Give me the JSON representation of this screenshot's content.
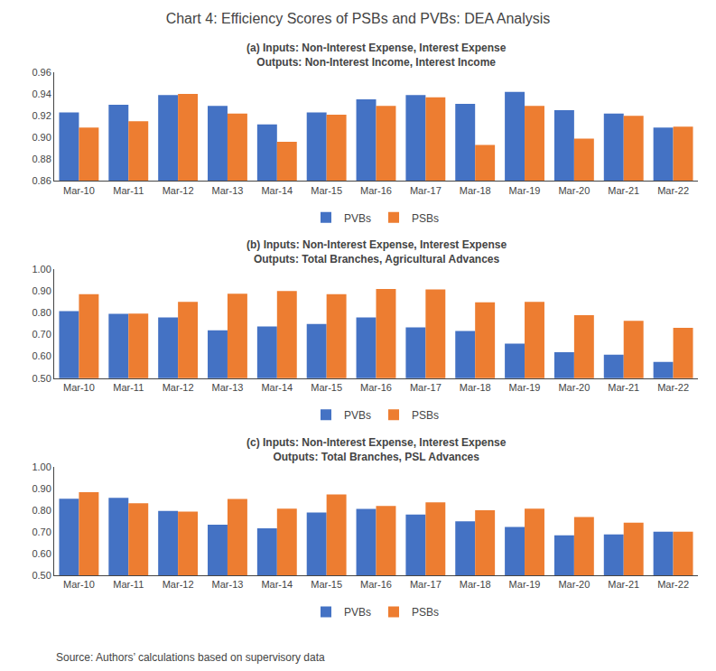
{
  "title": "Chart 4: Efficiency Scores of PSBs and PVBs: DEA Analysis",
  "annotations": [
    "Source: Authors’ calculations based on supervisory data"
  ],
  "chart_data": [
    {
      "type": "bar",
      "title": "(a) Inputs: Non-Interest Expense, Interest Expense",
      "subtitle": "Outputs: Non-Interest Income, Interest Income",
      "categories": [
        "Mar-10",
        "Mar-11",
        "Mar-12",
        "Mar-13",
        "Mar-14",
        "Mar-15",
        "Mar-16",
        "Mar-17",
        "Mar-18",
        "Mar-19",
        "Mar-20",
        "Mar-21",
        "Mar-22"
      ],
      "series": [
        {
          "name": "PVBs",
          "color": "#4472C4",
          "values": [
            0.923,
            0.93,
            0.939,
            0.929,
            0.912,
            0.923,
            0.935,
            0.939,
            0.931,
            0.942,
            0.925,
            0.922,
            0.909
          ]
        },
        {
          "name": "PSBs",
          "color": "#ED7D31",
          "values": [
            0.909,
            0.915,
            0.94,
            0.922,
            0.896,
            0.921,
            0.929,
            0.937,
            0.893,
            0.929,
            0.899,
            0.92,
            0.91
          ]
        }
      ],
      "ylim": [
        0.86,
        0.96
      ],
      "yticks": [
        0.86,
        0.88,
        {
          "value": 0.9,
          "label": "0.90"
        },
        0.92,
        0.94,
        0.96
      ],
      "grid": false,
      "legend": "bottom"
    },
    {
      "type": "bar",
      "title": "(b) Inputs: Non-Interest Expense, Interest Expense",
      "subtitle": "Outputs: Total Branches, Agricultural Advances",
      "categories": [
        "Mar-10",
        "Mar-11",
        "Mar-12",
        "Mar-13",
        "Mar-14",
        "Mar-15",
        "Mar-16",
        "Mar-17",
        "Mar-18",
        "Mar-19",
        "Mar-20",
        "Mar-21",
        "Mar-22"
      ],
      "series": [
        {
          "name": "PVBs",
          "color": "#4472C4",
          "values": [
            0.808,
            0.796,
            0.779,
            0.72,
            0.738,
            0.749,
            0.779,
            0.733,
            0.717,
            0.659,
            0.619,
            0.608,
            0.574
          ]
        },
        {
          "name": "PSBs",
          "color": "#ED7D31",
          "values": [
            0.886,
            0.797,
            0.851,
            0.888,
            0.901,
            0.886,
            0.91,
            0.908,
            0.849,
            0.851,
            0.789,
            0.764,
            0.731
          ]
        }
      ],
      "ylim": [
        0.5,
        1.0
      ],
      "yticks": [
        {
          "value": 0.5,
          "label": "0.50"
        },
        {
          "value": 0.6,
          "label": "0.60"
        },
        {
          "value": 0.7,
          "label": "0.70"
        },
        {
          "value": 0.8,
          "label": "0.80"
        },
        {
          "value": 0.9,
          "label": "0.90"
        },
        {
          "value": 1.0,
          "label": "1.00"
        }
      ],
      "grid": false,
      "legend": "bottom"
    },
    {
      "type": "bar",
      "title": "(c) Inputs: Non-Interest Expense, Interest Expense",
      "subtitle": "Outputs: Total Branches, PSL Advances",
      "categories": [
        "Mar-10",
        "Mar-11",
        "Mar-12",
        "Mar-13",
        "Mar-14",
        "Mar-15",
        "Mar-16",
        "Mar-17",
        "Mar-18",
        "Mar-19",
        "Mar-20",
        "Mar-21",
        "Mar-22"
      ],
      "series": [
        {
          "name": "PVBs",
          "color": "#4472C4",
          "values": [
            0.852,
            0.856,
            0.796,
            0.733,
            0.716,
            0.789,
            0.805,
            0.779,
            0.748,
            0.722,
            0.684,
            0.688,
            0.7
          ]
        },
        {
          "name": "PSBs",
          "color": "#ED7D31",
          "values": [
            0.882,
            0.831,
            0.793,
            0.851,
            0.806,
            0.872,
            0.819,
            0.836,
            0.799,
            0.806,
            0.768,
            0.742,
            0.7
          ]
        }
      ],
      "ylim": [
        0.5,
        1.0
      ],
      "yticks": [
        {
          "value": 0.5,
          "label": "0.50"
        },
        {
          "value": 0.6,
          "label": "0.60"
        },
        {
          "value": 0.7,
          "label": "0.70"
        },
        {
          "value": 0.8,
          "label": "0.80"
        },
        {
          "value": 0.9,
          "label": "0.90"
        },
        {
          "value": 1.0,
          "label": "1.00"
        }
      ],
      "grid": false,
      "legend": "bottom"
    }
  ]
}
